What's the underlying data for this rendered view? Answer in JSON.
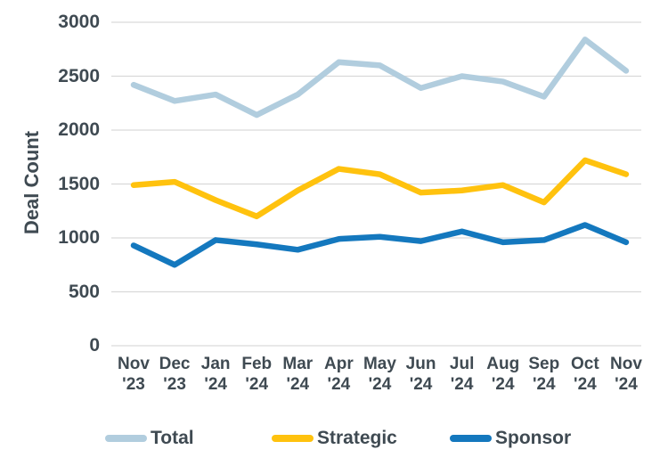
{
  "chart_data": {
    "type": "line",
    "title": "",
    "xlabel": "",
    "ylabel": "Deal Count",
    "ylim": [
      0,
      3000
    ],
    "yticks": [
      0,
      500,
      1000,
      1500,
      2000,
      2500,
      3000
    ],
    "grid": "horizontal",
    "legend_position": "bottom",
    "categories": [
      "Nov '23",
      "Dec '23",
      "Jan '24",
      "Feb '24",
      "Mar '24",
      "Apr '24",
      "May '24",
      "Jun '24",
      "Jul '24",
      "Aug '24",
      "Sep '24",
      "Oct '24",
      "Nov '24"
    ],
    "series": [
      {
        "name": "Total",
        "color": "#B1CDDE",
        "values": [
          2420,
          2270,
          2330,
          2140,
          2330,
          2630,
          2600,
          2390,
          2500,
          2450,
          2310,
          2840,
          2550
        ]
      },
      {
        "name": "Strategic",
        "color": "#FFC20E",
        "values": [
          1490,
          1520,
          1350,
          1200,
          1440,
          1640,
          1590,
          1420,
          1440,
          1490,
          1330,
          1720,
          1590
        ]
      },
      {
        "name": "Sponsor",
        "color": "#1478BE",
        "values": [
          930,
          750,
          980,
          940,
          890,
          990,
          1010,
          970,
          1060,
          960,
          980,
          1120,
          960
        ]
      }
    ],
    "styles": {
      "text_color": "#3F4A52",
      "grid_color": "#D9D9D9",
      "background": "#FFFFFF",
      "line_width": 6.5
    }
  }
}
